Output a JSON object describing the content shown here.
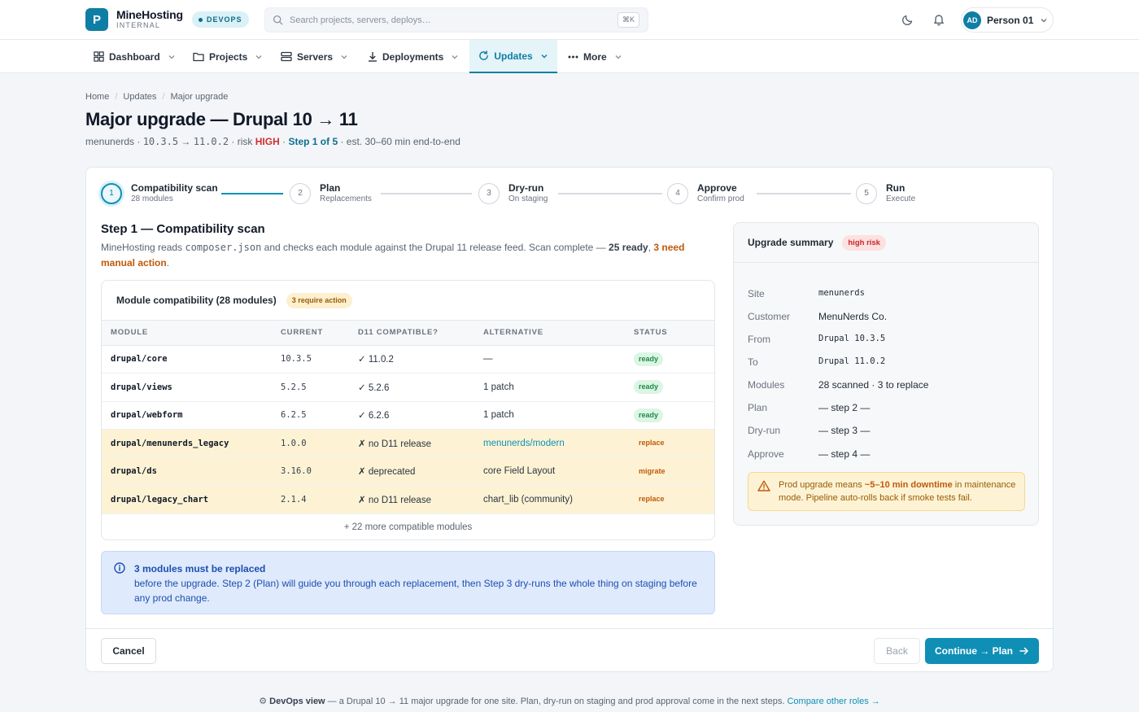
{
  "app": {
    "logo_letter": "P",
    "name": "MineHosting",
    "subtitle": "INTERNAL",
    "env_badge": "DEVOPS",
    "accent_color": "#0f8fb5"
  },
  "search": {
    "placeholder": "Search projects, servers, deploys…",
    "shortcut": "⌘K"
  },
  "user": {
    "initials": "AD",
    "name": "Person 01"
  },
  "nav": {
    "items": [
      {
        "label": "Dashboard",
        "icon": "grid-icon"
      },
      {
        "label": "Projects",
        "icon": "folder-icon"
      },
      {
        "label": "Servers",
        "icon": "server-icon"
      },
      {
        "label": "Deployments",
        "icon": "download-icon"
      },
      {
        "label": "Updates",
        "icon": "refresh-icon",
        "active": true
      },
      {
        "label": "More",
        "icon": "more-icon"
      }
    ]
  },
  "breadcrumb": [
    "Home",
    "Updates",
    "Major upgrade"
  ],
  "page": {
    "title": "Major upgrade — Drupal 10 → 11",
    "meta_site": "menunerds · ",
    "meta_from": "10.3.5",
    "meta_arrow": " → ",
    "meta_to": "11.0.2",
    "meta_risk_prefix": " · risk ",
    "meta_risk": "HIGH",
    "meta_sep": " · ",
    "meta_step": "Step 1 of 5",
    "meta_est": " · est. 30–60 min end-to-end"
  },
  "stepper": [
    {
      "num": "1",
      "title": "Compatibility scan",
      "sub": "28 modules",
      "active": true
    },
    {
      "num": "2",
      "title": "Plan",
      "sub": "Replacements"
    },
    {
      "num": "3",
      "title": "Dry-run",
      "sub": "On staging"
    },
    {
      "num": "4",
      "title": "Approve",
      "sub": "Confirm prod"
    },
    {
      "num": "5",
      "title": "Run",
      "sub": "Execute"
    }
  ],
  "step": {
    "title": "Step 1 — Compatibility scan",
    "desc_a": "MineHosting reads ",
    "desc_file": "composer.json",
    "desc_b": " and checks each module against the Drupal 11 release feed. Scan complete — ",
    "desc_ready": "25 ready",
    "desc_c": ", ",
    "desc_need": "3 need manual action",
    "desc_d": "."
  },
  "modules": {
    "title": "Module compatibility (28 modules)",
    "action_badge": "3 require action",
    "columns": [
      "MODULE",
      "CURRENT",
      "D11 COMPATIBLE?",
      "ALTERNATIVE",
      "STATUS"
    ],
    "rows": [
      {
        "module": "drupal/core",
        "current": "10.3.5",
        "compat": "✓ 11.0.2",
        "alt": "—",
        "status": "ready"
      },
      {
        "module": "drupal/views",
        "current": "5.2.5",
        "compat": "✓ 5.2.6",
        "alt": "1 patch",
        "status": "ready"
      },
      {
        "module": "drupal/webform",
        "current": "6.2.5",
        "compat": "✓ 6.2.6",
        "alt": "1 patch",
        "status": "ready"
      },
      {
        "module": "drupal/menunerds_legacy",
        "current": "1.0.0",
        "compat": "✗ no D11 release",
        "alt": "menunerds/modern",
        "status": "replace",
        "action": true,
        "alt_link": true
      },
      {
        "module": "drupal/ds",
        "current": "3.16.0",
        "compat": "✗ deprecated",
        "alt": "core Field Layout",
        "status": "migrate",
        "action": true
      },
      {
        "module": "drupal/legacy_chart",
        "current": "2.1.4",
        "compat": "✗ no D11 release",
        "alt": "chart_lib (community)",
        "status": "replace",
        "action": true
      }
    ],
    "more": "+ 22 more compatible modules"
  },
  "info": {
    "heading": "3 modules must be replaced",
    "body": "before the upgrade. Step 2 (Plan) will guide you through each replacement, then Step 3 dry-runs the whole thing on staging before any prod change."
  },
  "summary": {
    "title": "Upgrade summary",
    "risk_badge": "high risk",
    "rows": [
      {
        "k": "Site",
        "v": "menunerds",
        "mono": true
      },
      {
        "k": "Customer",
        "v": "MenuNerds Co."
      },
      {
        "k": "From",
        "v": "Drupal 10.3.5",
        "mono": true
      },
      {
        "k": "To",
        "v": "Drupal 11.0.2",
        "mono": true
      },
      {
        "k": "Modules",
        "v": "28 scanned · 3 to replace"
      },
      {
        "k": "Plan",
        "v": "— step 2 —"
      },
      {
        "k": "Dry-run",
        "v": "— step 3 —"
      },
      {
        "k": "Approve",
        "v": "— step 4 —"
      }
    ],
    "warn_a": "Prod upgrade means ",
    "warn_b": "~5–10 min downtime",
    "warn_c": " in maintenance mode. Pipeline auto-rolls back if smoke tests fail."
  },
  "actions": {
    "cancel": "Cancel",
    "back": "Back",
    "continue": "Continue → Plan"
  },
  "footer": {
    "icon": "⚙",
    "role": "DevOps view",
    "text": " — a Drupal 10 → 11 major upgrade for one site. Plan, dry-run on staging and prod approval come in the next steps. ",
    "link": "Compare other roles →"
  }
}
